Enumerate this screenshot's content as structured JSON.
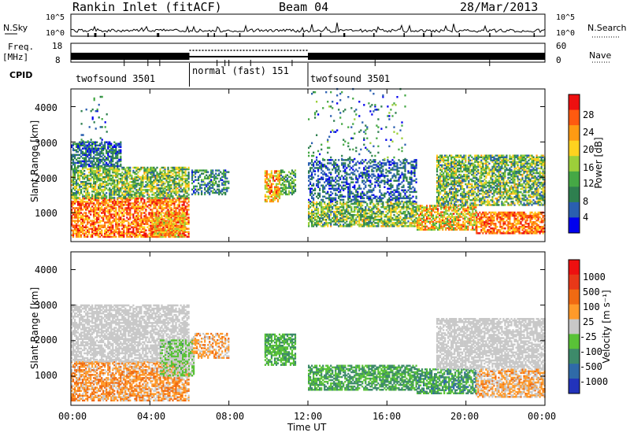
{
  "header": {
    "station": "Rankin Inlet (fitACF)",
    "beam": "Beam 04",
    "date": "28/Mar/2013"
  },
  "labels": {
    "nsky": "N.Sky",
    "nsearch": "N.Search",
    "freq": "Freq.",
    "freq_unit": "[MHz]",
    "nave": "Nave",
    "cpid": "CPID"
  },
  "axes": {
    "nsky_left_top": "10^5",
    "nsky_left_bot": "10^0",
    "nsky_right_top": "10^5",
    "nsky_right_bot": "10^0",
    "freq_top": "18",
    "freq_bot": "8",
    "nave_top": "60",
    "nave_bot": "0",
    "range_label": "Slant Range [km]",
    "range_ticks": [
      "1000",
      "2000",
      "3000",
      "4000"
    ],
    "time_ticks": [
      "00:00",
      "04:00",
      "08:00",
      "12:00",
      "16:00",
      "20:00",
      "00:00"
    ],
    "time_label": "Time UT"
  },
  "cpid": [
    {
      "label": "twofsound 3501"
    },
    {
      "label": "normal (fast) 151"
    },
    {
      "label": "twofsound 3501"
    }
  ],
  "colorbars": {
    "power": {
      "label": "Power [dB]",
      "ticks": [
        "4",
        "8",
        "12",
        "16",
        "20",
        "24",
        "28"
      ],
      "colors": [
        "#0000ee",
        "#2a5fb0",
        "#2e7f4f",
        "#45a845",
        "#9ccf3a",
        "#ffd21f",
        "#ff9a12",
        "#ff5a10",
        "#ee1010"
      ]
    },
    "velocity": {
      "label": "Velocity [m s⁻¹]",
      "ticks": [
        "1000",
        "500",
        "100",
        "25",
        "-25",
        "-100",
        "-500",
        "-1000"
      ],
      "colors": [
        "#2233bb",
        "#2f6aa8",
        "#3d8a6a",
        "#59c237",
        "#c8c8c8",
        "#ff9a2a",
        "#f06a12",
        "#e83818",
        "#ee1010"
      ]
    }
  },
  "chart_data": [
    {
      "type": "heatmap",
      "title": "Power",
      "xlabel": "Time UT",
      "ylabel": "Slant Range [km]",
      "xlim": [
        "00:00",
        "24:00"
      ],
      "ylim": [
        180,
        4500
      ],
      "colorbar": {
        "label": "Power [dB]",
        "range": [
          0,
          32
        ]
      },
      "regions": [
        {
          "t": [
            0.0,
            6.0
          ],
          "r": [
            300,
            1400
          ],
          "v": 25,
          "jit": 7
        },
        {
          "t": [
            0.0,
            6.0
          ],
          "r": [
            1400,
            2300
          ],
          "v": 14,
          "jit": 8
        },
        {
          "t": [
            0.0,
            2.5
          ],
          "r": [
            2300,
            3000
          ],
          "v": 7,
          "jit": 5
        },
        {
          "t": [
            0.5,
            1.8
          ],
          "r": [
            3000,
            4300
          ],
          "v": 8,
          "jit": 6,
          "p": 0.06
        },
        {
          "t": [
            4.2,
            5.8
          ],
          "r": [
            300,
            1000
          ],
          "v": 22,
          "jit": 8
        },
        {
          "t": [
            6.1,
            8.0
          ],
          "r": [
            1500,
            2200
          ],
          "v": 9,
          "jit": 6,
          "p": 0.5
        },
        {
          "t": [
            9.8,
            10.6
          ],
          "r": [
            1300,
            2200
          ],
          "v": 22,
          "jit": 8
        },
        {
          "t": [
            10.6,
            11.4
          ],
          "r": [
            1500,
            2200
          ],
          "v": 12,
          "jit": 6
        },
        {
          "t": [
            12.0,
            17.5
          ],
          "r": [
            600,
            1300
          ],
          "v": 14,
          "jit": 8
        },
        {
          "t": [
            12.0,
            17.5
          ],
          "r": [
            1300,
            2500
          ],
          "v": 6,
          "jit": 4,
          "p": 0.45
        },
        {
          "t": [
            12.0,
            17.0
          ],
          "r": [
            2500,
            4500
          ],
          "v": 8,
          "jit": 7,
          "p": 0.06
        },
        {
          "t": [
            17.5,
            20.5
          ],
          "r": [
            500,
            1200
          ],
          "v": 20,
          "jit": 9
        },
        {
          "t": [
            18.5,
            24.0
          ],
          "r": [
            1200,
            2600
          ],
          "v": 13,
          "jit": 9
        },
        {
          "t": [
            20.5,
            24.0
          ],
          "r": [
            400,
            1000
          ],
          "v": 25,
          "jit": 6
        }
      ]
    },
    {
      "type": "heatmap",
      "title": "Velocity",
      "xlabel": "Time UT",
      "ylabel": "Slant Range [km]",
      "xlim": [
        "00:00",
        "24:00"
      ],
      "ylim": [
        180,
        4500
      ],
      "colorbar": {
        "label": "Velocity [m s⁻¹]",
        "range": [
          -1000,
          1000
        ]
      },
      "regions": [
        {
          "t": [
            0.0,
            6.0
          ],
          "r": [
            300,
            1400
          ],
          "v": 240,
          "jit": 250
        },
        {
          "t": [
            0.0,
            6.0
          ],
          "r": [
            1400,
            3000
          ],
          "v": 0,
          "jit": 20
        },
        {
          "t": [
            4.5,
            6.2
          ],
          "r": [
            1000,
            2000
          ],
          "v": -150,
          "jit": 200
        },
        {
          "t": [
            6.1,
            8.0
          ],
          "r": [
            1500,
            2200
          ],
          "v": 200,
          "jit": 200,
          "p": 0.5
        },
        {
          "t": [
            9.8,
            11.4
          ],
          "r": [
            1300,
            2200
          ],
          "v": -300,
          "jit": 150
        },
        {
          "t": [
            12.0,
            17.5
          ],
          "r": [
            600,
            1300
          ],
          "v": -350,
          "jit": 150
        },
        {
          "t": [
            17.5,
            20.5
          ],
          "r": [
            500,
            1200
          ],
          "v": -400,
          "jit": 200
        },
        {
          "t": [
            18.5,
            24.0
          ],
          "r": [
            1200,
            2600
          ],
          "v": 0,
          "jit": 15
        },
        {
          "t": [
            20.5,
            24.0
          ],
          "r": [
            400,
            1200
          ],
          "v": 150,
          "jit": 250
        }
      ]
    }
  ]
}
